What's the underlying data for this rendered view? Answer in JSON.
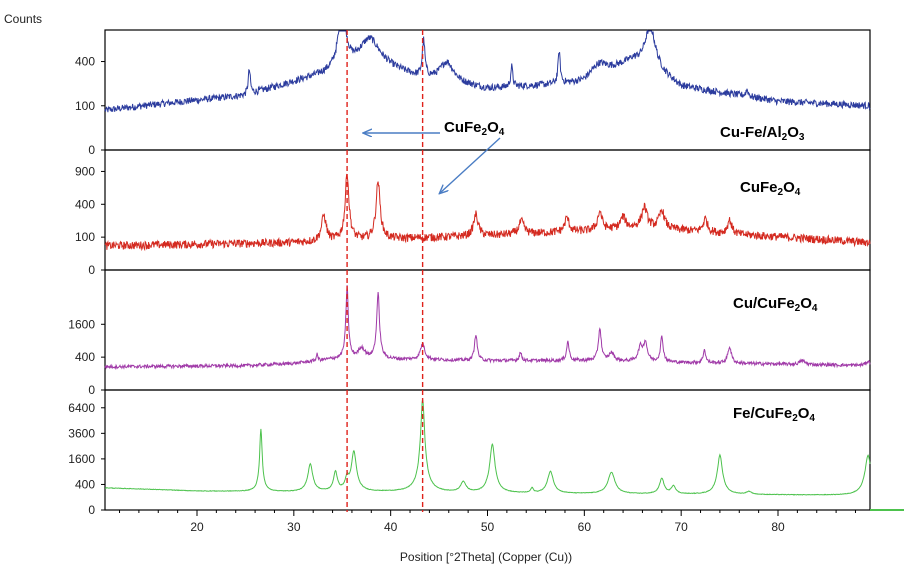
{
  "chart_data": {
    "type": "line",
    "title": "",
    "ylabel": "Counts",
    "xlabel": "Position [°2Theta] (Copper (Cu))",
    "xlim": [
      10.5,
      89.5
    ],
    "x_ticks": [
      20,
      30,
      40,
      50,
      60,
      70,
      80
    ],
    "x_tick_labels": [
      "20",
      "30",
      "40",
      "50",
      "60",
      "70",
      "80"
    ],
    "reference_lines_x": [
      35.5,
      43.3
    ],
    "annotation": {
      "text": "CuFe",
      "sub": "2",
      "text2": "O",
      "sub2": "4"
    },
    "panels": [
      {
        "name": "Cu-Fe/Al2O3",
        "label": [
          "Cu-Fe/Al",
          "2",
          "O",
          "3"
        ],
        "color": "#2c3c9e",
        "yticks": [
          0,
          100,
          400
        ],
        "ytick_labels": [
          "0",
          "100",
          "400"
        ],
        "baseline": [
          [
            10.5,
            80
          ],
          [
            25,
            150
          ],
          [
            34,
            300
          ],
          [
            38,
            380
          ],
          [
            43,
            260
          ],
          [
            50,
            190
          ],
          [
            60,
            230
          ],
          [
            65,
            400
          ],
          [
            70,
            200
          ],
          [
            80,
            120
          ],
          [
            89.5,
            100
          ]
        ],
        "peaks": [
          [
            25.4,
            170,
            0.12
          ],
          [
            35.0,
            700,
            0.4
          ],
          [
            37.8,
            250,
            1.2
          ],
          [
            43.4,
            340,
            0.15
          ],
          [
            45.8,
            160,
            0.8
          ],
          [
            52.5,
            150,
            0.12
          ],
          [
            57.4,
            280,
            0.12
          ],
          [
            61.5,
            100,
            1.0
          ],
          [
            66.8,
            450,
            0.6
          ],
          [
            76.8,
            40,
            0.15
          ]
        ],
        "noise": 22
      },
      {
        "name": "CuFe2O4",
        "label": [
          "CuFe",
          "2",
          "O",
          "4"
        ],
        "color": "#d42a20",
        "yticks": [
          0,
          100,
          400,
          900
        ],
        "ytick_labels": [
          "0",
          "100",
          "400",
          "900"
        ],
        "baseline": [
          [
            10.5,
            55
          ],
          [
            30,
            70
          ],
          [
            40,
            90
          ],
          [
            50,
            110
          ],
          [
            60,
            140
          ],
          [
            66,
            170
          ],
          [
            75,
            120
          ],
          [
            89.5,
            70
          ]
        ],
        "peaks": [
          [
            33.1,
            200,
            0.25
          ],
          [
            35.5,
            800,
            0.18
          ],
          [
            38.7,
            650,
            0.2
          ],
          [
            48.8,
            180,
            0.25
          ],
          [
            53.5,
            100,
            0.3
          ],
          [
            58.2,
            120,
            0.25
          ],
          [
            61.6,
            170,
            0.25
          ],
          [
            64.0,
            100,
            0.3
          ],
          [
            66.2,
            200,
            0.3
          ],
          [
            68.0,
            170,
            0.3
          ],
          [
            72.5,
            110,
            0.25
          ],
          [
            75.0,
            110,
            0.25
          ]
        ],
        "noise": 35
      },
      {
        "name": "Cu/CuFe2O4",
        "label": [
          "Cu/CuFe",
          "2",
          "O",
          "4"
        ],
        "color": "#a03aa8",
        "yticks": [
          0,
          400,
          1600
        ],
        "ytick_labels": [
          "0",
          "400",
          "1600"
        ],
        "baseline": [
          [
            10.5,
            200
          ],
          [
            25,
            220
          ],
          [
            30,
            260
          ],
          [
            34,
            350
          ],
          [
            40,
            350
          ],
          [
            50,
            320
          ],
          [
            60,
            320
          ],
          [
            70,
            280
          ],
          [
            89.5,
            220
          ]
        ],
        "peaks": [
          [
            32.4,
            150,
            0.1
          ],
          [
            35.5,
            3600,
            0.12
          ],
          [
            37.0,
            300,
            0.4
          ],
          [
            38.7,
            3100,
            0.14
          ],
          [
            43.3,
            450,
            0.25
          ],
          [
            48.8,
            850,
            0.14
          ],
          [
            53.4,
            200,
            0.14
          ],
          [
            58.3,
            550,
            0.14
          ],
          [
            61.6,
            1100,
            0.15
          ],
          [
            62.8,
            200,
            0.3
          ],
          [
            65.8,
            400,
            0.25
          ],
          [
            66.3,
            550,
            0.2
          ],
          [
            68.0,
            750,
            0.15
          ],
          [
            72.4,
            330,
            0.14
          ],
          [
            75.0,
            420,
            0.2
          ],
          [
            82.5,
            80,
            0.3
          ],
          [
            89.3,
            80,
            0.3
          ]
        ],
        "noise": 28
      },
      {
        "name": "Fe/CuFe2O4",
        "label": [
          "Fe/CuFe",
          "2",
          "O",
          "4"
        ],
        "color": "#4dc24d",
        "yticks": [
          0,
          400,
          1600,
          3600,
          6400
        ],
        "ytick_labels": [
          "0",
          "400",
          "1600",
          "3600",
          "6400"
        ],
        "baseline": [
          [
            10.5,
            300
          ],
          [
            20,
            220
          ],
          [
            30,
            200
          ],
          [
            40,
            200
          ],
          [
            50,
            170
          ],
          [
            60,
            160
          ],
          [
            70,
            150
          ],
          [
            80,
            140
          ],
          [
            89.5,
            130
          ]
        ],
        "peaks": [
          [
            26.6,
            3800,
            0.12
          ],
          [
            31.7,
            1100,
            0.25
          ],
          [
            34.3,
            700,
            0.2
          ],
          [
            35.5,
            400,
            0.2
          ],
          [
            36.2,
            1900,
            0.25
          ],
          [
            43.3,
            7300,
            0.2
          ],
          [
            47.5,
            300,
            0.3
          ],
          [
            50.5,
            2500,
            0.25
          ],
          [
            54.6,
            120,
            0.15
          ],
          [
            56.5,
            750,
            0.3
          ],
          [
            62.8,
            720,
            0.35
          ],
          [
            68.0,
            450,
            0.25
          ],
          [
            69.2,
            200,
            0.25
          ],
          [
            74.0,
            1700,
            0.25
          ],
          [
            77.0,
            60,
            0.3
          ],
          [
            89.3,
            1700,
            0.3
          ]
        ],
        "noise": 6
      }
    ]
  }
}
